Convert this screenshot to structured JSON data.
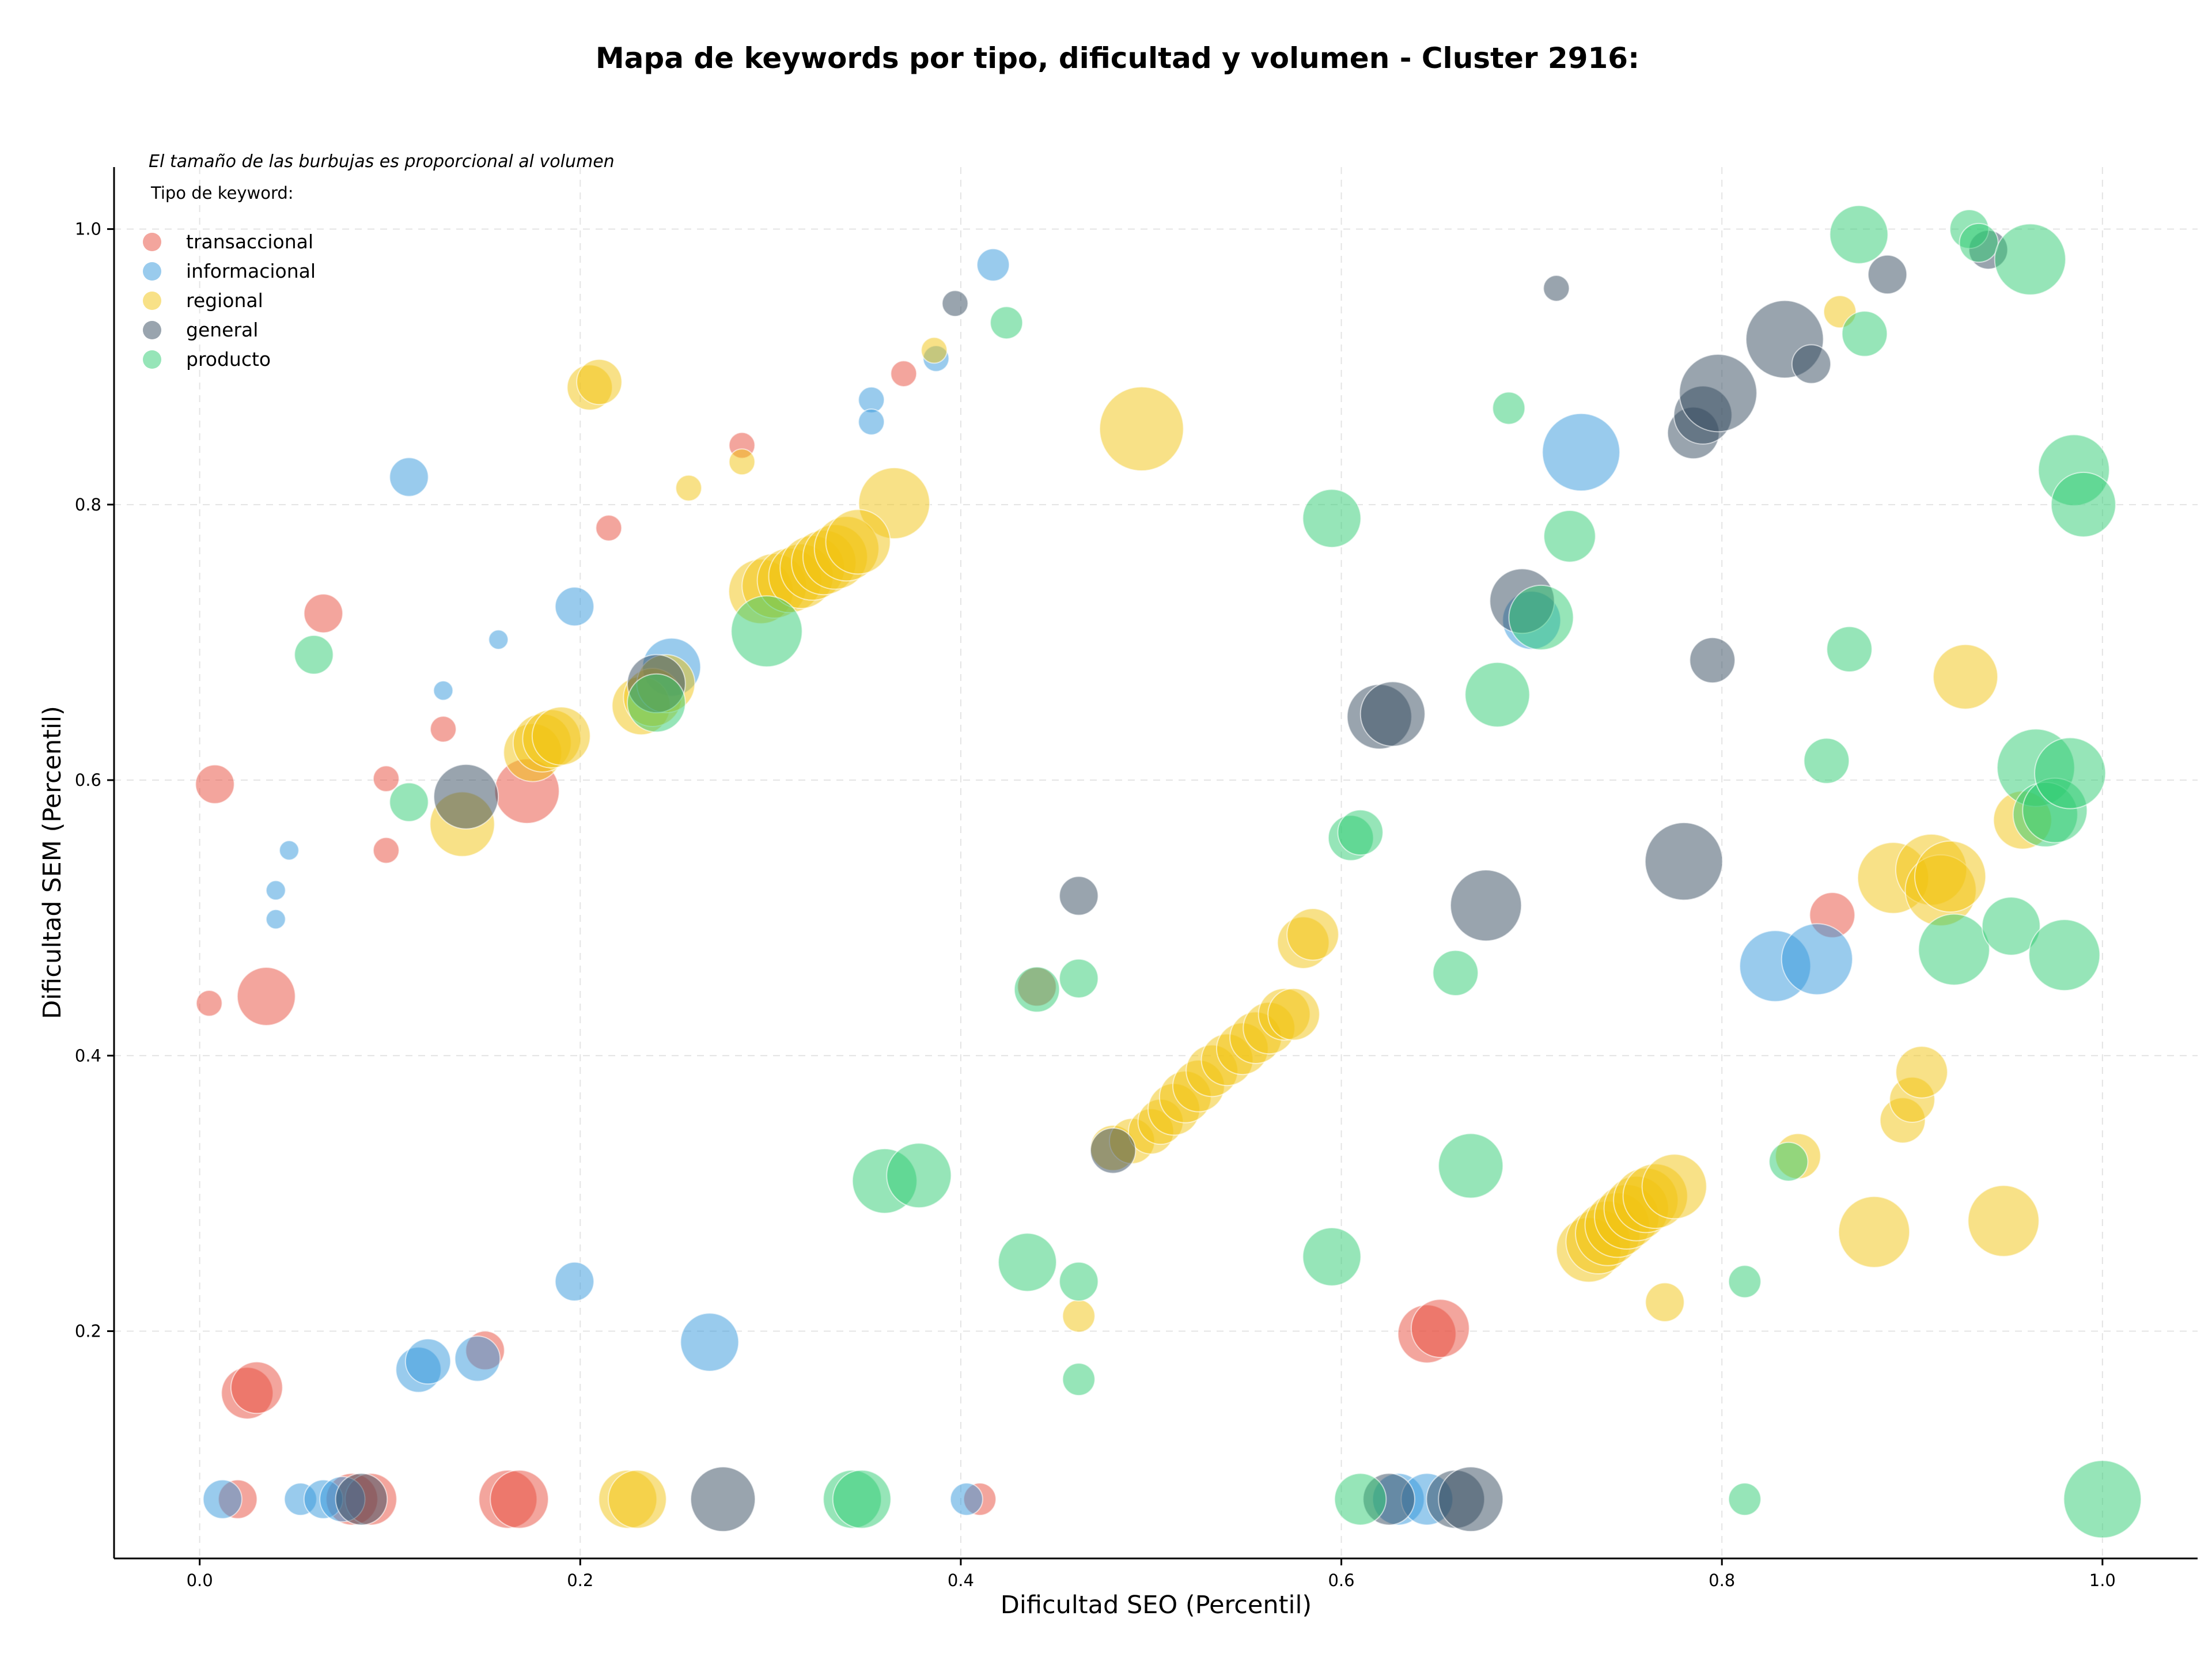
{
  "chart_data": {
    "type": "scatter",
    "title": "Mapa de keywords por tipo, dificultad y volumen - Cluster 2916:",
    "xlabel": "Dificultad SEO (Percentil)",
    "ylabel": "Dificultad SEM (Percentil)",
    "xlim": [
      -0.045,
      1.05
    ],
    "ylim": [
      0.035,
      1.045
    ],
    "xticks": [
      0.0,
      0.2,
      0.4,
      0.6,
      0.8,
      1.0
    ],
    "yticks": [
      0.2,
      0.4,
      0.6,
      0.8,
      1.0
    ],
    "xtick_labels": [
      "0.0",
      "0.2",
      "0.4",
      "0.6",
      "0.8",
      "1.0"
    ],
    "ytick_labels": [
      "0.2",
      "0.4",
      "0.6",
      "0.8",
      "1.0"
    ],
    "grid": true,
    "legend_position": "top-left",
    "legend_title": "Tipo de keyword:",
    "annotation": "El tamaño de las burbujas es proporcional al volumen",
    "colors": {
      "transaccional": "#e74c3c",
      "informacional": "#3498db",
      "regional": "#f1c40f",
      "general": "#34495e",
      "producto": "#2ecc71"
    },
    "series": [
      {
        "name": "transaccional",
        "points": [
          [
            0.005,
            0.438,
            4
          ],
          [
            0.008,
            0.597,
            6
          ],
          [
            0.035,
            0.443,
            9
          ],
          [
            0.065,
            0.721,
            6
          ],
          [
            0.098,
            0.601,
            4
          ],
          [
            0.098,
            0.549,
            4
          ],
          [
            0.128,
            0.637,
            4
          ],
          [
            0.172,
            0.592,
            10
          ],
          [
            0.215,
            0.783,
            4
          ],
          [
            0.285,
            0.843,
            4
          ],
          [
            0.37,
            0.895,
            4
          ],
          [
            0.44,
            0.45,
            6
          ],
          [
            0.15,
            0.186,
            6
          ],
          [
            0.025,
            0.155,
            8
          ],
          [
            0.03,
            0.159,
            8
          ],
          [
            0.02,
            0.078,
            6
          ],
          [
            0.08,
            0.078,
            8
          ],
          [
            0.09,
            0.078,
            8
          ],
          [
            0.162,
            0.078,
            9
          ],
          [
            0.168,
            0.078,
            9
          ],
          [
            0.41,
            0.078,
            5
          ],
          [
            0.645,
            0.198,
            9
          ],
          [
            0.652,
            0.202,
            9
          ],
          [
            0.858,
            0.502,
            7
          ]
        ]
      },
      {
        "name": "informacional",
        "points": [
          [
            0.11,
            0.82,
            6
          ],
          [
            0.04,
            0.52,
            3
          ],
          [
            0.04,
            0.499,
            3
          ],
          [
            0.047,
            0.549,
            3
          ],
          [
            0.128,
            0.665,
            3
          ],
          [
            0.157,
            0.702,
            3
          ],
          [
            0.197,
            0.726,
            6
          ],
          [
            0.248,
            0.682,
            9
          ],
          [
            0.353,
            0.876,
            4
          ],
          [
            0.353,
            0.86,
            4
          ],
          [
            0.387,
            0.906,
            4
          ],
          [
            0.417,
            0.974,
            5
          ],
          [
            0.197,
            0.236,
            6
          ],
          [
            0.268,
            0.192,
            9
          ],
          [
            0.115,
            0.172,
            7
          ],
          [
            0.12,
            0.178,
            7
          ],
          [
            0.146,
            0.18,
            7
          ],
          [
            0.012,
            0.078,
            6
          ],
          [
            0.053,
            0.078,
            5
          ],
          [
            0.065,
            0.078,
            6
          ],
          [
            0.075,
            0.078,
            7
          ],
          [
            0.403,
            0.078,
            5
          ],
          [
            0.63,
            0.078,
            8
          ],
          [
            0.645,
            0.078,
            8
          ],
          [
            0.7,
            0.716,
            9
          ],
          [
            0.726,
            0.838,
            12
          ],
          [
            0.828,
            0.465,
            11
          ],
          [
            0.85,
            0.47,
            11
          ]
        ]
      },
      {
        "name": "regional",
        "points": [
          [
            0.205,
            0.885,
            7
          ],
          [
            0.21,
            0.889,
            7
          ],
          [
            0.257,
            0.812,
            4
          ],
          [
            0.285,
            0.831,
            4
          ],
          [
            0.386,
            0.912,
            4
          ],
          [
            0.365,
            0.801,
            11
          ],
          [
            0.138,
            0.568,
            10
          ],
          [
            0.175,
            0.62,
            9
          ],
          [
            0.18,
            0.627,
            9
          ],
          [
            0.185,
            0.63,
            9
          ],
          [
            0.19,
            0.632,
            9
          ],
          [
            0.232,
            0.654,
            9
          ],
          [
            0.238,
            0.66,
            9
          ],
          [
            0.245,
            0.67,
            9
          ],
          [
            0.295,
            0.737,
            10
          ],
          [
            0.302,
            0.741,
            10
          ],
          [
            0.31,
            0.745,
            10
          ],
          [
            0.316,
            0.748,
            10
          ],
          [
            0.322,
            0.754,
            10
          ],
          [
            0.328,
            0.758,
            10
          ],
          [
            0.334,
            0.762,
            10
          ],
          [
            0.34,
            0.768,
            10
          ],
          [
            0.346,
            0.773,
            10
          ],
          [
            0.495,
            0.855,
            13
          ],
          [
            0.225,
            0.078,
            9
          ],
          [
            0.23,
            0.078,
            9
          ],
          [
            0.462,
            0.211,
            5
          ],
          [
            0.48,
            0.333,
            7
          ],
          [
            0.49,
            0.338,
            7
          ],
          [
            0.5,
            0.345,
            7
          ],
          [
            0.505,
            0.352,
            7
          ],
          [
            0.512,
            0.361,
            8
          ],
          [
            0.518,
            0.37,
            8
          ],
          [
            0.525,
            0.378,
            8
          ],
          [
            0.532,
            0.389,
            8
          ],
          [
            0.54,
            0.397,
            8
          ],
          [
            0.548,
            0.405,
            8
          ],
          [
            0.555,
            0.413,
            8
          ],
          [
            0.562,
            0.42,
            8
          ],
          [
            0.57,
            0.43,
            8
          ],
          [
            0.575,
            0.43,
            8
          ],
          [
            0.58,
            0.482,
            8
          ],
          [
            0.585,
            0.488,
            8
          ],
          [
            0.73,
            0.259,
            10
          ],
          [
            0.735,
            0.265,
            10
          ],
          [
            0.74,
            0.271,
            10
          ],
          [
            0.745,
            0.277,
            10
          ],
          [
            0.75,
            0.283,
            10
          ],
          [
            0.755,
            0.289,
            10
          ],
          [
            0.76,
            0.295,
            10
          ],
          [
            0.765,
            0.298,
            10
          ],
          [
            0.775,
            0.305,
            10
          ],
          [
            0.77,
            0.221,
            6
          ],
          [
            0.862,
            0.94,
            5
          ],
          [
            0.84,
            0.327,
            7
          ],
          [
            0.88,
            0.272,
            11
          ],
          [
            0.895,
            0.353,
            7
          ],
          [
            0.9,
            0.368,
            7
          ],
          [
            0.905,
            0.388,
            8
          ],
          [
            0.89,
            0.529,
            11
          ],
          [
            0.91,
            0.535,
            11
          ],
          [
            0.915,
            0.52,
            11
          ],
          [
            0.92,
            0.53,
            11
          ],
          [
            0.928,
            0.675,
            10
          ],
          [
            0.948,
            0.28,
            11
          ],
          [
            0.958,
            0.571,
            9
          ]
        ]
      },
      {
        "name": "general",
        "points": [
          [
            0.14,
            0.588,
            10
          ],
          [
            0.24,
            0.67,
            9
          ],
          [
            0.397,
            0.946,
            4
          ],
          [
            0.462,
            0.516,
            6
          ],
          [
            0.48,
            0.331,
            7
          ],
          [
            0.275,
            0.078,
            10
          ],
          [
            0.085,
            0.078,
            8
          ],
          [
            0.62,
            0.646,
            10
          ],
          [
            0.627,
            0.648,
            10
          ],
          [
            0.625,
            0.078,
            8
          ],
          [
            0.66,
            0.078,
            9
          ],
          [
            0.668,
            0.078,
            10
          ],
          [
            0.676,
            0.509,
            11
          ],
          [
            0.695,
            0.73,
            10
          ],
          [
            0.713,
            0.957,
            4
          ],
          [
            0.78,
            0.541,
            12
          ],
          [
            0.785,
            0.852,
            8
          ],
          [
            0.79,
            0.865,
            9
          ],
          [
            0.798,
            0.881,
            12
          ],
          [
            0.795,
            0.687,
            7
          ],
          [
            0.833,
            0.92,
            12
          ],
          [
            0.847,
            0.902,
            6
          ],
          [
            0.887,
            0.967,
            6
          ],
          [
            0.94,
            0.985,
            6
          ]
        ]
      },
      {
        "name": "producto",
        "points": [
          [
            0.06,
            0.691,
            6
          ],
          [
            0.11,
            0.584,
            6
          ],
          [
            0.298,
            0.708,
            11
          ],
          [
            0.24,
            0.656,
            9
          ],
          [
            0.424,
            0.932,
            5
          ],
          [
            0.36,
            0.309,
            10
          ],
          [
            0.378,
            0.313,
            10
          ],
          [
            0.343,
            0.078,
            9
          ],
          [
            0.348,
            0.078,
            9
          ],
          [
            0.435,
            0.25,
            9
          ],
          [
            0.44,
            0.448,
            7
          ],
          [
            0.462,
            0.456,
            6
          ],
          [
            0.462,
            0.236,
            6
          ],
          [
            0.462,
            0.165,
            5
          ],
          [
            0.595,
            0.79,
            9
          ],
          [
            0.595,
            0.254,
            9
          ],
          [
            0.605,
            0.558,
            7
          ],
          [
            0.61,
            0.562,
            7
          ],
          [
            0.61,
            0.078,
            8
          ],
          [
            0.66,
            0.46,
            7
          ],
          [
            0.668,
            0.32,
            10
          ],
          [
            0.682,
            0.662,
            10
          ],
          [
            0.688,
            0.87,
            5
          ],
          [
            0.705,
            0.718,
            10
          ],
          [
            0.72,
            0.777,
            8
          ],
          [
            0.812,
            0.236,
            5
          ],
          [
            0.812,
            0.078,
            5
          ],
          [
            0.835,
            0.323,
            6
          ],
          [
            0.855,
            0.614,
            7
          ],
          [
            0.867,
            0.695,
            7
          ],
          [
            0.872,
            0.996,
            9
          ],
          [
            0.875,
            0.924,
            7
          ],
          [
            0.922,
            0.477,
            11
          ],
          [
            0.93,
            1.0,
            6
          ],
          [
            0.935,
            0.99,
            6
          ],
          [
            0.952,
            0.494,
            9
          ],
          [
            0.962,
            0.978,
            11
          ],
          [
            0.965,
            0.609,
            12
          ],
          [
            0.97,
            0.575,
            10
          ],
          [
            0.975,
            0.578,
            10
          ],
          [
            0.98,
            0.473,
            11
          ],
          [
            0.983,
            0.605,
            11
          ],
          [
            0.985,
            0.825,
            11
          ],
          [
            0.99,
            0.8,
            10
          ],
          [
            1.0,
            0.078,
            12
          ]
        ]
      }
    ]
  }
}
